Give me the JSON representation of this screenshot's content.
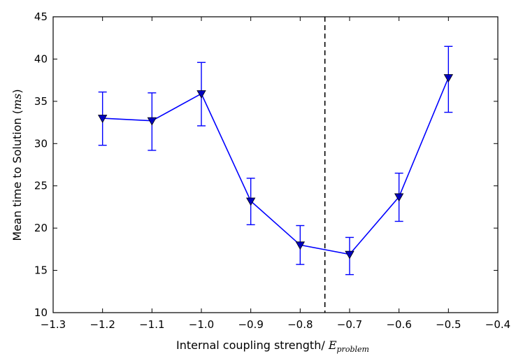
{
  "chart_data": {
    "type": "line",
    "title": "",
    "xlabel": "Internal coupling strength/ ",
    "xlabel_math": "E",
    "xlabel_math_sub": "problem",
    "ylabel": "Mean time to Solution (",
    "ylabel_math": "ms",
    "ylabel_end": ")",
    "xlim": [
      -1.3,
      -0.4
    ],
    "ylim": [
      10,
      45
    ],
    "xticks": [
      -1.3,
      -1.2,
      -1.1,
      -1.0,
      -0.9,
      -0.8,
      -0.7,
      -0.6,
      -0.5,
      -0.4
    ],
    "xtick_labels": [
      "−1.3",
      "−1.2",
      "−1.1",
      "−1.0",
      "−0.9",
      "−0.8",
      "−0.7",
      "−0.6",
      "−0.5",
      "−0.4"
    ],
    "yticks": [
      10,
      15,
      20,
      25,
      30,
      35,
      40,
      45
    ],
    "ytick_labels": [
      "10",
      "15",
      "20",
      "25",
      "30",
      "35",
      "40",
      "45"
    ],
    "grid": false,
    "vline": {
      "x": -0.75,
      "style": "dashed",
      "color": "#000000"
    },
    "series": [
      {
        "name": "mean time to solution",
        "color": "#0000ff",
        "marker": "triangle-down",
        "x": [
          -1.2,
          -1.1,
          -1.0,
          -0.9,
          -0.8,
          -0.7,
          -0.6,
          -0.5
        ],
        "y": [
          33.0,
          32.7,
          35.9,
          23.2,
          18.0,
          16.9,
          23.7,
          37.8
        ],
        "yerr_low": [
          29.8,
          29.2,
          32.1,
          20.4,
          15.7,
          14.5,
          20.8,
          33.7
        ],
        "yerr_high": [
          36.1,
          36.0,
          39.6,
          25.9,
          20.3,
          18.9,
          26.5,
          41.5
        ]
      }
    ]
  }
}
